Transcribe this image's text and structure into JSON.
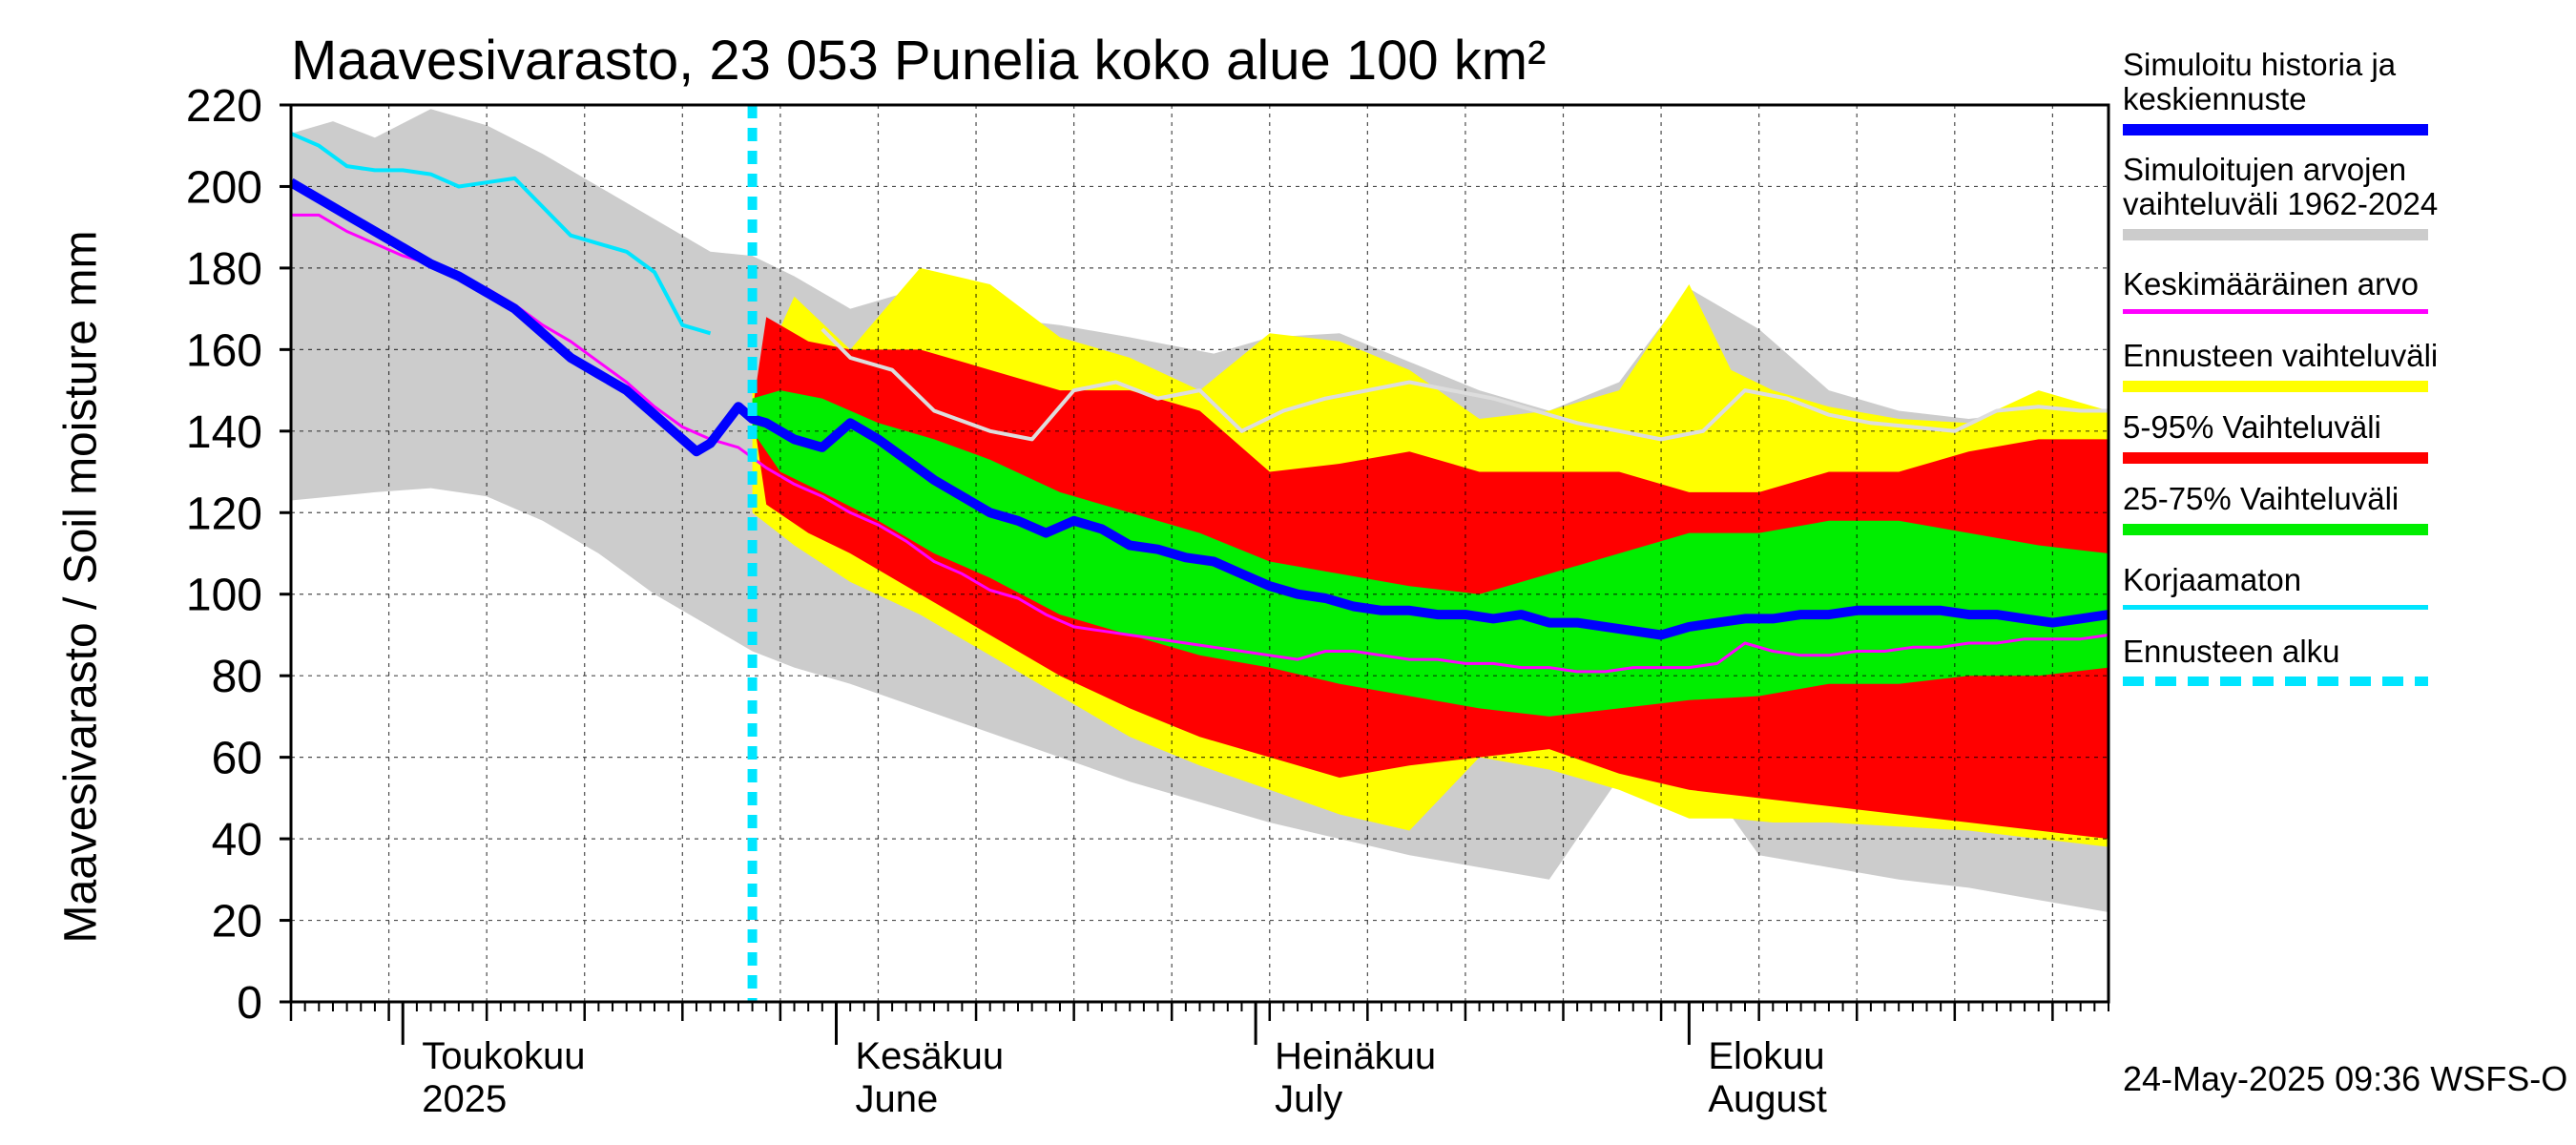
{
  "title": "Maavesivarasto, 23 053 Punelia koko alue 100 km²",
  "footer": "24-May-2025 09:36 WSFS-O",
  "chart_data": {
    "type": "area",
    "title": "Maavesivarasto, 23 053 Punelia koko alue 100 km²",
    "ylabel": "Maavesivarasto / Soil moisture   mm",
    "xlabel": "",
    "ylim": [
      0,
      220
    ],
    "yticks": [
      0,
      20,
      40,
      60,
      80,
      100,
      120,
      140,
      160,
      180,
      200,
      220
    ],
    "xlim_day": [
      0,
      130
    ],
    "forecast_start_day": 33,
    "month_labels": [
      {
        "day": 8,
        "fi": "Toukokuu",
        "en": "2025"
      },
      {
        "day": 39,
        "fi": "Kesäkuu",
        "en": "June"
      },
      {
        "day": 69,
        "fi": "Heinäkuu",
        "en": "July"
      },
      {
        "day": 100,
        "fi": "Elokuu",
        "en": "August"
      }
    ],
    "week_days": [
      0,
      7,
      14,
      21,
      28,
      35,
      42,
      49,
      56,
      63,
      70,
      77,
      84,
      91,
      98,
      105,
      112,
      119,
      126
    ],
    "month_days": [
      8,
      39,
      69,
      100
    ],
    "series": [
      {
        "name": "Simuloitujen arvojen vaihteluväli 1962-2024",
        "kind": "band",
        "color": "#cccccc",
        "x": [
          0,
          3,
          6,
          10,
          14,
          18,
          22,
          26,
          30,
          33,
          36,
          40,
          45,
          50,
          55,
          60,
          66,
          70,
          75,
          80,
          85,
          90,
          95,
          100,
          105,
          110,
          115,
          120,
          125,
          130
        ],
        "hi": [
          213,
          216,
          212,
          219,
          215,
          208,
          200,
          192,
          184,
          183,
          178,
          170,
          175,
          168,
          166,
          163,
          159,
          163,
          164,
          157,
          150,
          145,
          152,
          175,
          165,
          150,
          145,
          143,
          145,
          145
        ],
        "lo": [
          123,
          124,
          125,
          126,
          124,
          118,
          110,
          100,
          92,
          86,
          82,
          78,
          72,
          66,
          60,
          54,
          48,
          44,
          40,
          36,
          33,
          30,
          55,
          60,
          36,
          33,
          30,
          28,
          25,
          22
        ]
      },
      {
        "name": "Ennusteen vaihteluväli",
        "kind": "band",
        "color": "#ffff00",
        "x": [
          33,
          36,
          40,
          45,
          50,
          55,
          60,
          65,
          70,
          75,
          80,
          85,
          90,
          95,
          100,
          103,
          106,
          110,
          115,
          120,
          125,
          130
        ],
        "hi": [
          150,
          173,
          160,
          180,
          176,
          163,
          158,
          150,
          164,
          162,
          155,
          143,
          145,
          150,
          176,
          155,
          150,
          146,
          143,
          142,
          150,
          145
        ],
        "lo": [
          120,
          112,
          103,
          95,
          85,
          75,
          65,
          58,
          52,
          46,
          42,
          60,
          57,
          52,
          45,
          45,
          44,
          44,
          43,
          42,
          40,
          38
        ]
      },
      {
        "name": "5-95% Vaihteluväli",
        "kind": "band",
        "color": "#ff0000",
        "x": [
          33,
          34,
          37,
          40,
          45,
          50,
          55,
          60,
          65,
          70,
          75,
          80,
          85,
          90,
          95,
          100,
          105,
          110,
          115,
          120,
          125,
          130
        ],
        "hi": [
          145,
          168,
          162,
          160,
          160,
          155,
          150,
          150,
          145,
          130,
          132,
          135,
          130,
          130,
          130,
          125,
          125,
          130,
          130,
          135,
          138,
          138
        ],
        "lo": [
          145,
          122,
          115,
          110,
          100,
          90,
          80,
          72,
          65,
          60,
          55,
          58,
          60,
          62,
          56,
          52,
          50,
          48,
          46,
          44,
          42,
          40
        ]
      },
      {
        "name": "25-75% Vaihteluväli",
        "kind": "band",
        "color": "#00ee00",
        "x": [
          33,
          35,
          38,
          42,
          46,
          50,
          55,
          60,
          65,
          70,
          75,
          80,
          85,
          90,
          95,
          100,
          105,
          110,
          115,
          120,
          125,
          130
        ],
        "hi": [
          148,
          150,
          148,
          142,
          138,
          133,
          125,
          120,
          115,
          108,
          105,
          102,
          100,
          105,
          110,
          115,
          115,
          118,
          118,
          115,
          112,
          110
        ],
        "lo": [
          140,
          130,
          125,
          118,
          110,
          104,
          95,
          90,
          85,
          82,
          78,
          75,
          72,
          70,
          72,
          74,
          75,
          78,
          78,
          80,
          80,
          82
        ]
      },
      {
        "name": "Keskimääräinen arvo",
        "kind": "line",
        "color": "#ff00ff",
        "width": 3,
        "x": [
          0,
          2,
          4,
          6,
          8,
          10,
          12,
          14,
          16,
          18,
          20,
          22,
          24,
          26,
          28,
          30,
          32,
          34,
          36,
          38,
          40,
          42,
          44,
          46,
          48,
          50,
          52,
          54,
          56,
          58,
          60,
          62,
          64,
          66,
          68,
          70,
          72,
          74,
          76,
          78,
          80,
          82,
          84,
          86,
          88,
          90,
          92,
          94,
          96,
          98,
          100,
          102,
          104,
          106,
          108,
          110,
          112,
          114,
          116,
          118,
          120,
          122,
          124,
          126,
          128,
          130
        ],
        "y": [
          193,
          193,
          189,
          186,
          183,
          181,
          178,
          175,
          171,
          166,
          162,
          157,
          152,
          146,
          141,
          138,
          136,
          131,
          127,
          124,
          120,
          117,
          113,
          108,
          105,
          101,
          99,
          95,
          92,
          91,
          90,
          89,
          88,
          87,
          86,
          85,
          84,
          86,
          86,
          85,
          84,
          84,
          83,
          83,
          82,
          82,
          81,
          81,
          82,
          82,
          82,
          83,
          88,
          86,
          85,
          85,
          86,
          86,
          87,
          87,
          88,
          88,
          89,
          89,
          89,
          90
        ]
      },
      {
        "name": "Korjaamaton",
        "kind": "line",
        "color": "#00e5ff",
        "width": 4,
        "x": [
          0,
          2,
          4,
          6,
          8,
          10,
          12,
          14,
          16,
          18,
          20,
          22,
          24,
          26,
          28,
          30
        ],
        "y": [
          213,
          210,
          205,
          204,
          204,
          203,
          200,
          201,
          202,
          195,
          188,
          186,
          184,
          179,
          166,
          164
        ]
      },
      {
        "name": "Simuloitu historia ja keskiennuste",
        "kind": "line",
        "color": "#0000ff",
        "width": 10,
        "x": [
          0,
          2,
          4,
          6,
          8,
          10,
          12,
          14,
          16,
          18,
          20,
          22,
          24,
          26,
          28,
          29,
          30,
          32,
          33,
          34,
          36,
          38,
          40,
          42,
          44,
          46,
          48,
          50,
          52,
          54,
          56,
          58,
          60,
          62,
          64,
          66,
          68,
          70,
          72,
          74,
          76,
          78,
          80,
          82,
          84,
          86,
          88,
          90,
          92,
          94,
          96,
          98,
          100,
          102,
          104,
          106,
          108,
          110,
          112,
          114,
          116,
          118,
          120,
          122,
          124,
          126,
          128,
          130
        ],
        "y": [
          201,
          197,
          193,
          189,
          185,
          181,
          178,
          174,
          170,
          164,
          158,
          154,
          150,
          144,
          138,
          135,
          137,
          146,
          143,
          142,
          138,
          136,
          142,
          138,
          133,
          128,
          124,
          120,
          118,
          115,
          118,
          116,
          112,
          111,
          109,
          108,
          105,
          102,
          100,
          99,
          97,
          96,
          96,
          95,
          95,
          94,
          95,
          93,
          93,
          92,
          91,
          90,
          92,
          93,
          94,
          94,
          95,
          95,
          96,
          96,
          96,
          96,
          95,
          95,
          94,
          93,
          94,
          95
        ]
      },
      {
        "name": "Simuloitu historia (vaaleanharmaa)",
        "kind": "line",
        "color": "#dddddd",
        "width": 4,
        "x": [
          38,
          40,
          43,
          46,
          50,
          53,
          56,
          59,
          62,
          65,
          68,
          71,
          74,
          77,
          80,
          83,
          86,
          89,
          92,
          95,
          98,
          101,
          104,
          107,
          110,
          113,
          116,
          119,
          122,
          125,
          128,
          130
        ],
        "y": [
          165,
          158,
          155,
          145,
          140,
          138,
          150,
          152,
          148,
          150,
          140,
          145,
          148,
          150,
          152,
          150,
          148,
          145,
          142,
          140,
          138,
          140,
          150,
          148,
          144,
          142,
          141,
          140,
          145,
          146,
          145,
          145
        ]
      }
    ]
  },
  "legend": [
    {
      "label": "Simuloitu historia ja\nkeskiennuste",
      "color": "#0000ff",
      "style": "thick"
    },
    {
      "label": "Simuloitujen arvojen\nvaihteluväli 1962-2024",
      "color": "#cccccc",
      "style": "thick"
    },
    {
      "label": "Keskimääräinen arvo",
      "color": "#ff00ff",
      "style": "thin"
    },
    {
      "label": "Ennusteen vaihteluväli",
      "color": "#ffff00",
      "style": "thick"
    },
    {
      "label": "5-95% Vaihteluväli",
      "color": "#ff0000",
      "style": "thick"
    },
    {
      "label": "25-75% Vaihteluväli",
      "color": "#00ee00",
      "style": "thick"
    },
    {
      "label": "Korjaamaton",
      "color": "#00e5ff",
      "style": "thin"
    },
    {
      "label": "Ennusteen alku",
      "color": "#00e5ff",
      "style": "dashed"
    }
  ]
}
